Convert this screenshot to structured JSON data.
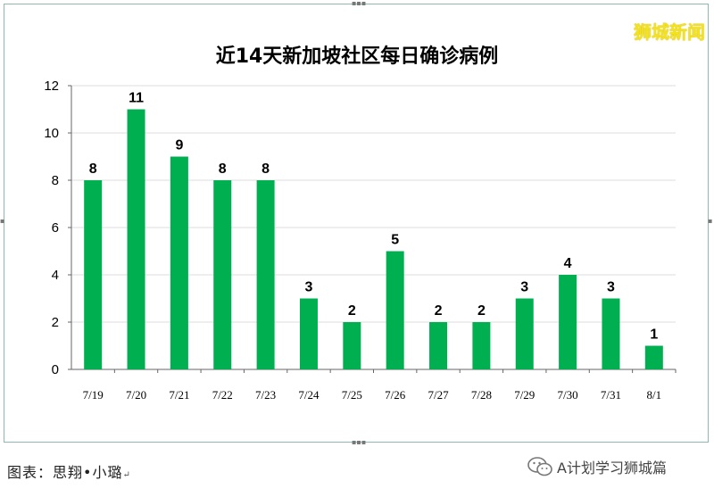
{
  "watermark": "狮城新闻",
  "chart_data": {
    "type": "bar",
    "title": "近14天新加坡社区每日确诊病例",
    "categories": [
      "7/19",
      "7/20",
      "7/21",
      "7/22",
      "7/23",
      "7/24",
      "7/25",
      "7/26",
      "7/27",
      "7/28",
      "7/29",
      "7/30",
      "7/31",
      "8/1"
    ],
    "values": [
      8,
      11,
      9,
      8,
      8,
      3,
      2,
      5,
      2,
      2,
      3,
      4,
      3,
      1
    ],
    "ylim": [
      0,
      12
    ],
    "yticks": [
      0,
      2,
      4,
      6,
      8,
      10,
      12
    ],
    "grid": true,
    "bar_color": "#00b050",
    "data_labels": true
  },
  "footer": {
    "source": "图表：思翔•小璐",
    "return_mark": "↵",
    "brand": "A计划学习狮城篇",
    "brand_icon": "wechat-icon"
  }
}
